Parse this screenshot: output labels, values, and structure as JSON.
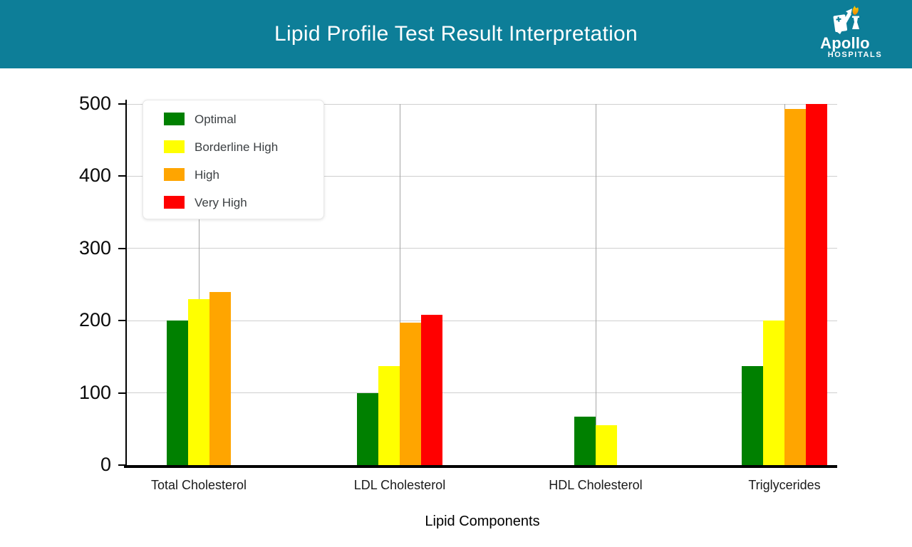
{
  "header": {
    "title": "Lipid Profile Test Result Interpretation",
    "bg_color": "#0d7e98",
    "logo": {
      "name": "Apollo",
      "sub": "HOSPITALS",
      "flame_color": "#f5a800"
    }
  },
  "chart_data": {
    "type": "bar",
    "title": "Lipid Profile Test Result Interpretation",
    "categories": [
      "Total Cholesterol",
      "LDL Cholesterol",
      "HDL Cholesterol",
      "Triglycerides"
    ],
    "series": [
      {
        "name": "Optimal",
        "color": "#008000",
        "values": [
          200,
          100,
          67,
          137
        ]
      },
      {
        "name": "Borderline High",
        "color": "#ffff00",
        "values": [
          230,
          137,
          55,
          200
        ]
      },
      {
        "name": "High",
        "color": "#ffa500",
        "values": [
          240,
          197,
          null,
          493
        ]
      },
      {
        "name": "Very High",
        "color": "#ff0000",
        "values": [
          null,
          208,
          null,
          500
        ]
      }
    ],
    "xlabel": "Lipid Components",
    "ylabel": "",
    "ylim": [
      0,
      500
    ],
    "yticks": [
      0,
      100,
      200,
      300,
      400,
      500
    ],
    "grid": true,
    "legend_position": "top-left"
  }
}
